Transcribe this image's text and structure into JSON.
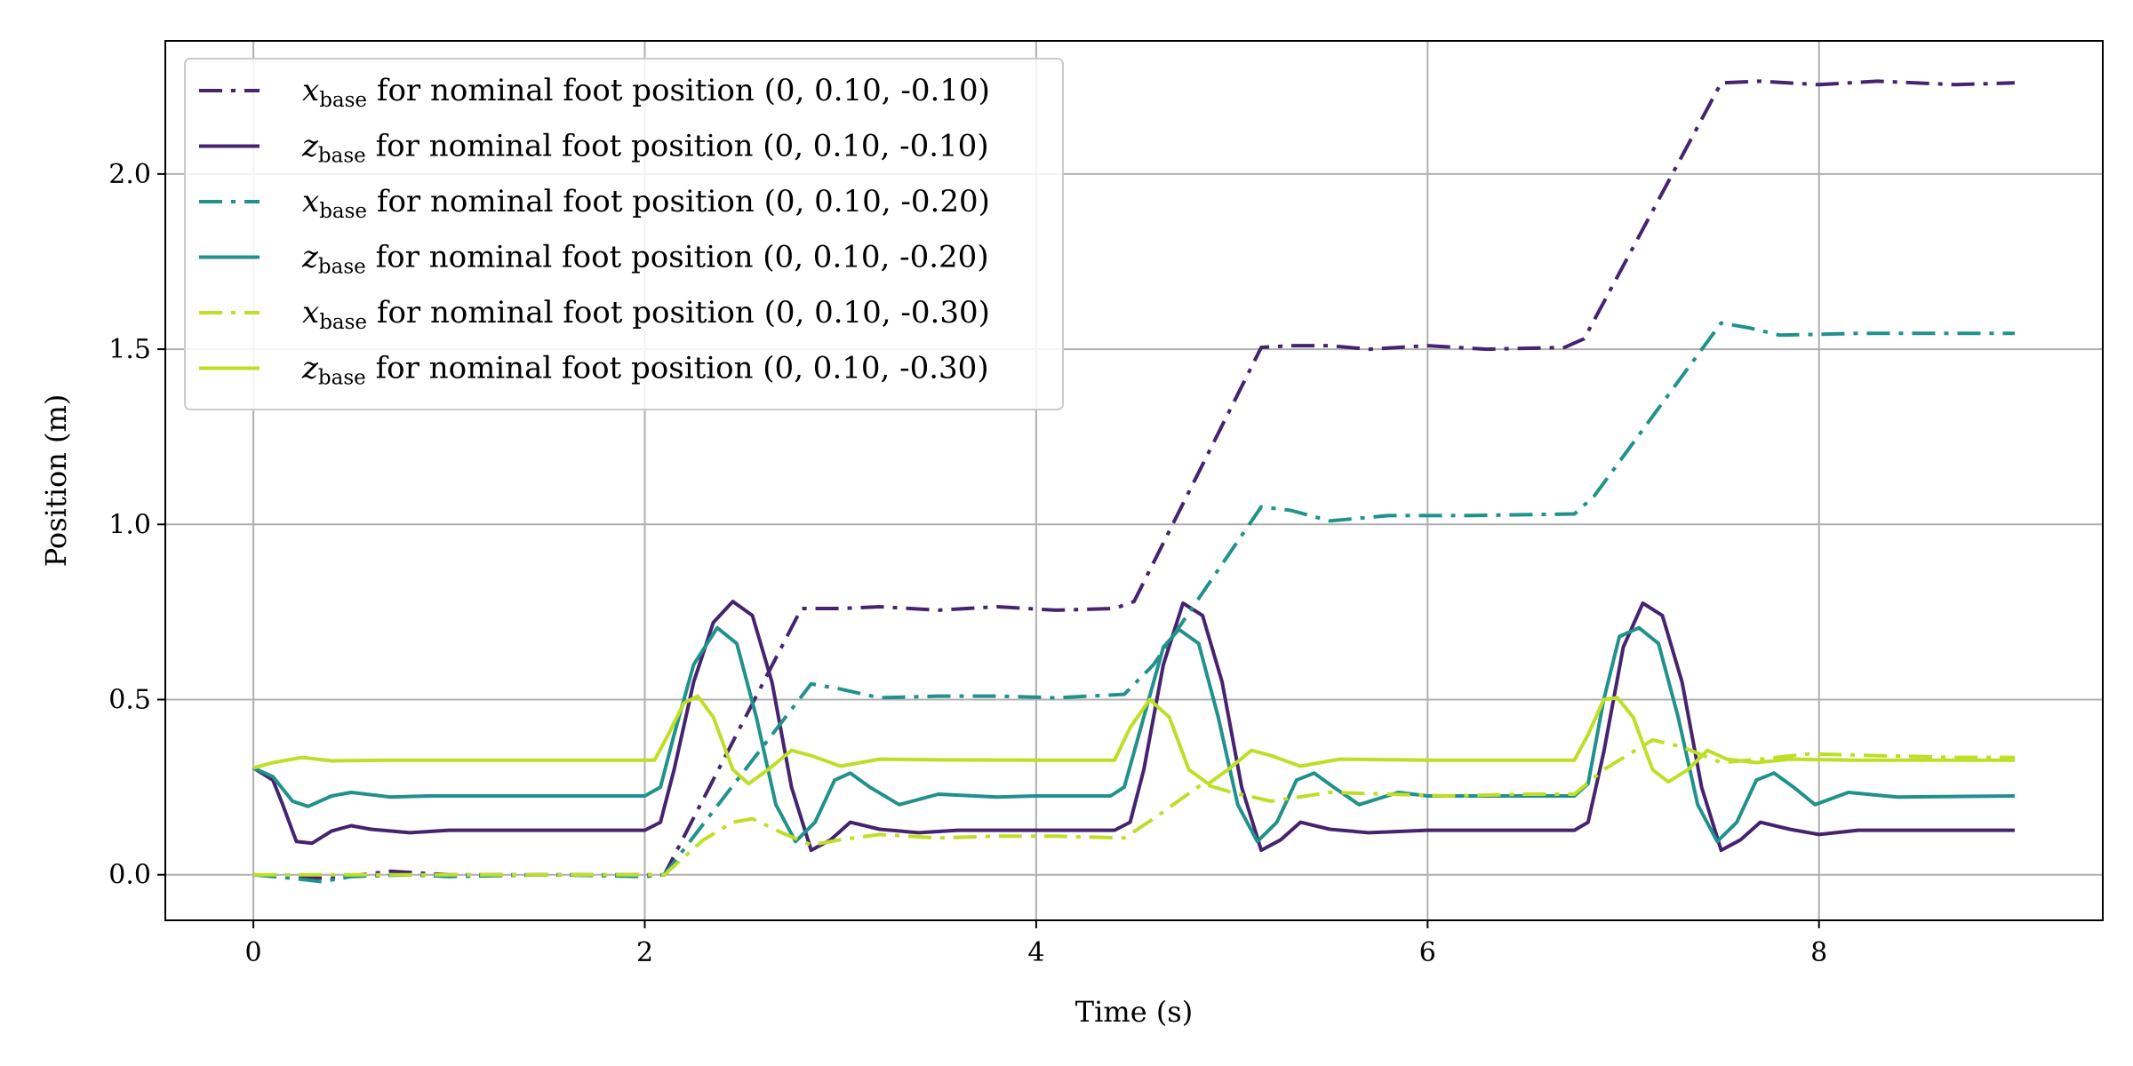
{
  "chart_data": {
    "type": "line",
    "title": "",
    "xlabel": "Time (s)",
    "ylabel": "Position (m)",
    "xlim": [
      -0.45,
      9.45
    ],
    "ylim": [
      -0.13,
      2.38
    ],
    "xticks": [
      0,
      2,
      4,
      6,
      8
    ],
    "yticks": [
      0.0,
      0.5,
      1.0,
      1.5,
      2.0
    ],
    "xtick_labels": [
      "0",
      "2",
      "4",
      "6",
      "8"
    ],
    "ytick_labels": [
      "0.0",
      "0.5",
      "1.0",
      "1.5",
      "2.0"
    ],
    "grid": true,
    "legend_position": "top-left",
    "series": [
      {
        "name": "x_base for nominal foot position (0, 0.10, -0.10)",
        "legend_var": "x",
        "legend_sub": "base",
        "legend_rest": "for nominal foot position (0, 0.10, -0.10)",
        "color": "#46236e",
        "style": "dashdot",
        "points": [
          [
            0,
            0.0
          ],
          [
            0.4,
            -0.01
          ],
          [
            0.7,
            0.01
          ],
          [
            1.0,
            0.0
          ],
          [
            1.5,
            0.0
          ],
          [
            2.0,
            0.0
          ],
          [
            2.1,
            0.0
          ],
          [
            2.8,
            0.76
          ],
          [
            3.0,
            0.76
          ],
          [
            3.2,
            0.765
          ],
          [
            3.5,
            0.755
          ],
          [
            3.8,
            0.765
          ],
          [
            4.1,
            0.755
          ],
          [
            4.4,
            0.76
          ],
          [
            4.5,
            0.78
          ],
          [
            5.15,
            1.505
          ],
          [
            5.3,
            1.51
          ],
          [
            5.5,
            1.51
          ],
          [
            5.7,
            1.5
          ],
          [
            6.0,
            1.51
          ],
          [
            6.3,
            1.5
          ],
          [
            6.7,
            1.505
          ],
          [
            6.8,
            1.53
          ],
          [
            7.5,
            2.26
          ],
          [
            7.7,
            2.265
          ],
          [
            8.0,
            2.255
          ],
          [
            8.3,
            2.265
          ],
          [
            8.7,
            2.255
          ],
          [
            9.0,
            2.26
          ]
        ]
      },
      {
        "name": "z_base for nominal foot position (0, 0.10, -0.10)",
        "legend_var": "z",
        "legend_sub": "base",
        "legend_rest": "for nominal foot position (0, 0.10, -0.10)",
        "color": "#46236e",
        "style": "solid",
        "points": [
          [
            0,
            0.305
          ],
          [
            0.1,
            0.27
          ],
          [
            0.15,
            0.2
          ],
          [
            0.22,
            0.095
          ],
          [
            0.3,
            0.09
          ],
          [
            0.4,
            0.125
          ],
          [
            0.5,
            0.14
          ],
          [
            0.6,
            0.13
          ],
          [
            0.8,
            0.12
          ],
          [
            1.0,
            0.127
          ],
          [
            1.5,
            0.127
          ],
          [
            2.0,
            0.127
          ],
          [
            2.08,
            0.15
          ],
          [
            2.15,
            0.3
          ],
          [
            2.25,
            0.55
          ],
          [
            2.35,
            0.72
          ],
          [
            2.45,
            0.78
          ],
          [
            2.55,
            0.74
          ],
          [
            2.65,
            0.55
          ],
          [
            2.75,
            0.25
          ],
          [
            2.85,
            0.07
          ],
          [
            2.95,
            0.1
          ],
          [
            3.05,
            0.15
          ],
          [
            3.2,
            0.13
          ],
          [
            3.4,
            0.12
          ],
          [
            3.6,
            0.127
          ],
          [
            4.0,
            0.127
          ],
          [
            4.4,
            0.127
          ],
          [
            4.48,
            0.15
          ],
          [
            4.55,
            0.3
          ],
          [
            4.65,
            0.6
          ],
          [
            4.75,
            0.775
          ],
          [
            4.85,
            0.74
          ],
          [
            4.95,
            0.55
          ],
          [
            5.05,
            0.25
          ],
          [
            5.15,
            0.07
          ],
          [
            5.25,
            0.1
          ],
          [
            5.35,
            0.15
          ],
          [
            5.5,
            0.13
          ],
          [
            5.7,
            0.12
          ],
          [
            6.0,
            0.127
          ],
          [
            6.75,
            0.127
          ],
          [
            6.82,
            0.15
          ],
          [
            6.9,
            0.35
          ],
          [
            7.0,
            0.65
          ],
          [
            7.1,
            0.775
          ],
          [
            7.2,
            0.74
          ],
          [
            7.3,
            0.55
          ],
          [
            7.4,
            0.25
          ],
          [
            7.5,
            0.07
          ],
          [
            7.6,
            0.1
          ],
          [
            7.7,
            0.15
          ],
          [
            7.85,
            0.13
          ],
          [
            8.0,
            0.115
          ],
          [
            8.2,
            0.127
          ],
          [
            8.5,
            0.127
          ],
          [
            9.0,
            0.127
          ]
        ]
      },
      {
        "name": "x_base for nominal foot position (0, 0.10, -0.20)",
        "legend_var": "x",
        "legend_sub": "base",
        "legend_rest": "for nominal foot position (0, 0.10, -0.20)",
        "color": "#21918c",
        "style": "dashdot",
        "points": [
          [
            0,
            0.0
          ],
          [
            0.2,
            -0.01
          ],
          [
            0.35,
            -0.02
          ],
          [
            0.5,
            -0.005
          ],
          [
            0.8,
            0.0
          ],
          [
            1.0,
            -0.005
          ],
          [
            1.5,
            0.0
          ],
          [
            2.0,
            -0.005
          ],
          [
            2.1,
            0.0
          ],
          [
            2.85,
            0.545
          ],
          [
            3.0,
            0.53
          ],
          [
            3.2,
            0.505
          ],
          [
            3.5,
            0.51
          ],
          [
            3.8,
            0.51
          ],
          [
            4.1,
            0.505
          ],
          [
            4.45,
            0.515
          ],
          [
            4.6,
            0.6
          ],
          [
            5.15,
            1.05
          ],
          [
            5.3,
            1.04
          ],
          [
            5.5,
            1.01
          ],
          [
            5.8,
            1.025
          ],
          [
            6.2,
            1.025
          ],
          [
            6.75,
            1.03
          ],
          [
            6.85,
            1.08
          ],
          [
            7.5,
            1.575
          ],
          [
            7.65,
            1.56
          ],
          [
            7.8,
            1.54
          ],
          [
            8.2,
            1.545
          ],
          [
            8.6,
            1.545
          ],
          [
            9.0,
            1.545
          ]
        ]
      },
      {
        "name": "z_base for nominal foot position (0, 0.10, -0.20)",
        "legend_var": "z",
        "legend_sub": "base",
        "legend_rest": "for nominal foot position (0, 0.10, -0.20)",
        "color": "#21918c",
        "style": "solid",
        "points": [
          [
            0,
            0.305
          ],
          [
            0.1,
            0.28
          ],
          [
            0.2,
            0.21
          ],
          [
            0.28,
            0.195
          ],
          [
            0.4,
            0.225
          ],
          [
            0.5,
            0.235
          ],
          [
            0.7,
            0.222
          ],
          [
            0.9,
            0.225
          ],
          [
            1.2,
            0.225
          ],
          [
            2.0,
            0.225
          ],
          [
            2.08,
            0.25
          ],
          [
            2.15,
            0.4
          ],
          [
            2.25,
            0.6
          ],
          [
            2.37,
            0.705
          ],
          [
            2.47,
            0.66
          ],
          [
            2.57,
            0.45
          ],
          [
            2.67,
            0.2
          ],
          [
            2.77,
            0.095
          ],
          [
            2.87,
            0.15
          ],
          [
            2.97,
            0.27
          ],
          [
            3.05,
            0.29
          ],
          [
            3.15,
            0.25
          ],
          [
            3.3,
            0.2
          ],
          [
            3.5,
            0.23
          ],
          [
            3.8,
            0.222
          ],
          [
            4.0,
            0.225
          ],
          [
            4.38,
            0.225
          ],
          [
            4.45,
            0.25
          ],
          [
            4.55,
            0.45
          ],
          [
            4.65,
            0.65
          ],
          [
            4.73,
            0.7
          ],
          [
            4.83,
            0.66
          ],
          [
            4.93,
            0.45
          ],
          [
            5.03,
            0.2
          ],
          [
            5.13,
            0.095
          ],
          [
            5.23,
            0.15
          ],
          [
            5.33,
            0.27
          ],
          [
            5.42,
            0.29
          ],
          [
            5.52,
            0.25
          ],
          [
            5.65,
            0.2
          ],
          [
            5.85,
            0.235
          ],
          [
            6.0,
            0.225
          ],
          [
            6.75,
            0.225
          ],
          [
            6.82,
            0.26
          ],
          [
            6.9,
            0.5
          ],
          [
            6.98,
            0.68
          ],
          [
            7.08,
            0.705
          ],
          [
            7.18,
            0.66
          ],
          [
            7.28,
            0.45
          ],
          [
            7.38,
            0.2
          ],
          [
            7.48,
            0.095
          ],
          [
            7.58,
            0.15
          ],
          [
            7.68,
            0.27
          ],
          [
            7.77,
            0.29
          ],
          [
            7.87,
            0.25
          ],
          [
            7.98,
            0.2
          ],
          [
            8.15,
            0.235
          ],
          [
            8.4,
            0.222
          ],
          [
            9.0,
            0.225
          ]
        ]
      },
      {
        "name": "x_base for nominal foot position (0, 0.10, -0.30)",
        "legend_var": "x",
        "legend_sub": "base",
        "legend_rest": "for nominal foot position (0, 0.10, -0.30)",
        "color": "#bddf26",
        "style": "dashdot",
        "points": [
          [
            0,
            0.0
          ],
          [
            0.5,
            0.0
          ],
          [
            1.0,
            0.0
          ],
          [
            1.5,
            0.0
          ],
          [
            2.0,
            0.0
          ],
          [
            2.1,
            0.0
          ],
          [
            2.3,
            0.1
          ],
          [
            2.45,
            0.15
          ],
          [
            2.55,
            0.16
          ],
          [
            2.7,
            0.12
          ],
          [
            2.85,
            0.085
          ],
          [
            3.0,
            0.1
          ],
          [
            3.2,
            0.115
          ],
          [
            3.5,
            0.105
          ],
          [
            3.8,
            0.11
          ],
          [
            4.1,
            0.11
          ],
          [
            4.45,
            0.105
          ],
          [
            4.6,
            0.16
          ],
          [
            4.85,
            0.26
          ],
          [
            5.0,
            0.235
          ],
          [
            5.2,
            0.21
          ],
          [
            5.5,
            0.235
          ],
          [
            5.8,
            0.23
          ],
          [
            6.1,
            0.225
          ],
          [
            6.5,
            0.23
          ],
          [
            6.75,
            0.23
          ],
          [
            6.9,
            0.3
          ],
          [
            7.15,
            0.385
          ],
          [
            7.3,
            0.365
          ],
          [
            7.5,
            0.32
          ],
          [
            7.7,
            0.33
          ],
          [
            7.95,
            0.345
          ],
          [
            8.3,
            0.34
          ],
          [
            8.7,
            0.335
          ],
          [
            9.0,
            0.335
          ]
        ]
      },
      {
        "name": "z_base for nominal foot position (0, 0.10, -0.30)",
        "legend_var": "z",
        "legend_sub": "base",
        "legend_rest": "for nominal foot position (0, 0.10, -0.30)",
        "color": "#bddf26",
        "style": "solid",
        "points": [
          [
            0,
            0.305
          ],
          [
            0.1,
            0.32
          ],
          [
            0.25,
            0.335
          ],
          [
            0.4,
            0.325
          ],
          [
            0.7,
            0.327
          ],
          [
            1.0,
            0.327
          ],
          [
            2.05,
            0.327
          ],
          [
            2.12,
            0.4
          ],
          [
            2.2,
            0.49
          ],
          [
            2.27,
            0.51
          ],
          [
            2.35,
            0.45
          ],
          [
            2.45,
            0.3
          ],
          [
            2.53,
            0.26
          ],
          [
            2.63,
            0.3
          ],
          [
            2.75,
            0.355
          ],
          [
            2.85,
            0.34
          ],
          [
            3.0,
            0.31
          ],
          [
            3.2,
            0.33
          ],
          [
            3.5,
            0.328
          ],
          [
            4.0,
            0.327
          ],
          [
            4.4,
            0.327
          ],
          [
            4.48,
            0.42
          ],
          [
            4.58,
            0.5
          ],
          [
            4.68,
            0.45
          ],
          [
            4.78,
            0.3
          ],
          [
            4.88,
            0.26
          ],
          [
            4.98,
            0.3
          ],
          [
            5.1,
            0.355
          ],
          [
            5.2,
            0.34
          ],
          [
            5.35,
            0.31
          ],
          [
            5.55,
            0.33
          ],
          [
            6.0,
            0.327
          ],
          [
            6.75,
            0.327
          ],
          [
            6.82,
            0.4
          ],
          [
            6.9,
            0.5
          ],
          [
            6.97,
            0.505
          ],
          [
            7.05,
            0.45
          ],
          [
            7.15,
            0.3
          ],
          [
            7.23,
            0.265
          ],
          [
            7.33,
            0.3
          ],
          [
            7.43,
            0.355
          ],
          [
            7.53,
            0.33
          ],
          [
            7.68,
            0.32
          ],
          [
            7.85,
            0.33
          ],
          [
            8.2,
            0.327
          ],
          [
            9.0,
            0.327
          ]
        ]
      }
    ]
  }
}
